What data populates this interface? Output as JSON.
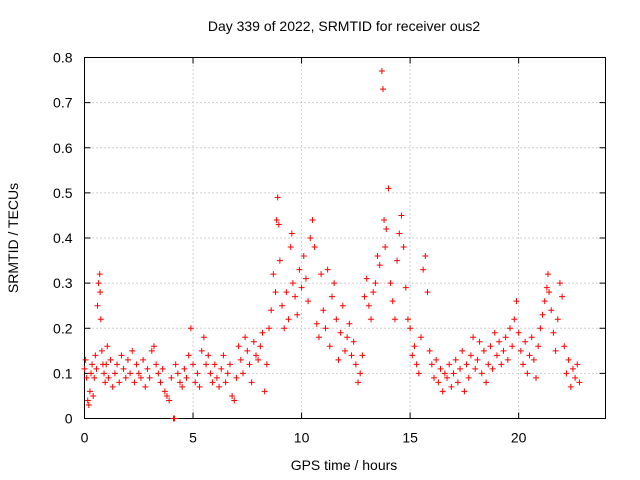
{
  "chart_data": {
    "type": "scatter",
    "title": "Day 339 of 2022, SRMTID for receiver ous2",
    "xlabel": "GPS time / hours",
    "ylabel": "SRMTID / TECUs",
    "xlim": [
      0,
      24
    ],
    "ylim": [
      0,
      0.8
    ],
    "x_ticks": [
      0,
      5,
      10,
      15,
      20
    ],
    "y_ticks": [
      0,
      0.1,
      0.2,
      0.3,
      0.4,
      0.5,
      0.6,
      0.7,
      0.8
    ],
    "x_tick_labels": [
      "0",
      "5",
      "10",
      "15",
      "20"
    ],
    "y_tick_labels": [
      "0",
      "0.1",
      "0.2",
      "0.3",
      "0.4",
      "0.5",
      "0.6",
      "0.7",
      "0.8"
    ],
    "grid": true,
    "legend": "none",
    "marker": "+",
    "series": [
      {
        "name": "SRMTID",
        "color": "#ff0000",
        "points": [
          [
            0.0,
            0.11
          ],
          [
            0.05,
            0.13
          ],
          [
            0.1,
            0.09
          ],
          [
            0.15,
            0.04
          ],
          [
            0.2,
            0.03
          ],
          [
            0.25,
            0.06
          ],
          [
            0.3,
            0.1
          ],
          [
            0.35,
            0.12
          ],
          [
            0.4,
            0.05
          ],
          [
            0.45,
            0.09
          ],
          [
            0.5,
            0.14
          ],
          [
            0.55,
            0.11
          ],
          [
            0.6,
            0.25
          ],
          [
            0.65,
            0.3
          ],
          [
            0.7,
            0.32
          ],
          [
            0.72,
            0.28
          ],
          [
            0.75,
            0.22
          ],
          [
            0.8,
            0.15
          ],
          [
            0.85,
            0.12
          ],
          [
            0.9,
            0.1
          ],
          [
            0.95,
            0.08
          ],
          [
            1.0,
            0.12
          ],
          [
            1.05,
            0.16
          ],
          [
            1.1,
            0.09
          ],
          [
            1.2,
            0.13
          ],
          [
            1.3,
            0.07
          ],
          [
            1.4,
            0.1
          ],
          [
            1.5,
            0.12
          ],
          [
            1.6,
            0.08
          ],
          [
            1.7,
            0.14
          ],
          [
            1.8,
            0.11
          ],
          [
            1.9,
            0.09
          ],
          [
            2.0,
            0.13
          ],
          [
            2.1,
            0.1
          ],
          [
            2.2,
            0.15
          ],
          [
            2.3,
            0.08
          ],
          [
            2.4,
            0.12
          ],
          [
            2.5,
            0.1
          ],
          [
            2.6,
            0.09
          ],
          [
            2.7,
            0.13
          ],
          [
            2.8,
            0.07
          ],
          [
            2.9,
            0.11
          ],
          [
            3.0,
            0.09
          ],
          [
            3.1,
            0.15
          ],
          [
            3.2,
            0.16
          ],
          [
            3.3,
            0.12
          ],
          [
            3.4,
            0.1
          ],
          [
            3.5,
            0.08
          ],
          [
            3.6,
            0.11
          ],
          [
            3.7,
            0.06
          ],
          [
            3.8,
            0.05
          ],
          [
            3.9,
            0.04
          ],
          [
            4.0,
            0.09
          ],
          [
            4.1,
            0.0
          ],
          [
            4.15,
            0.0
          ],
          [
            4.2,
            0.12
          ],
          [
            4.3,
            0.1
          ],
          [
            4.4,
            0.08
          ],
          [
            4.5,
            0.07
          ],
          [
            4.6,
            0.11
          ],
          [
            4.7,
            0.09
          ],
          [
            4.8,
            0.14
          ],
          [
            4.9,
            0.2
          ],
          [
            5.0,
            0.12
          ],
          [
            5.1,
            0.08
          ],
          [
            5.2,
            0.1
          ],
          [
            5.3,
            0.07
          ],
          [
            5.4,
            0.15
          ],
          [
            5.5,
            0.18
          ],
          [
            5.6,
            0.12
          ],
          [
            5.7,
            0.14
          ],
          [
            5.8,
            0.1
          ],
          [
            5.9,
            0.08
          ],
          [
            6.0,
            0.12
          ],
          [
            6.1,
            0.09
          ],
          [
            6.2,
            0.07
          ],
          [
            6.3,
            0.11
          ],
          [
            6.4,
            0.14
          ],
          [
            6.5,
            0.08
          ],
          [
            6.6,
            0.1
          ],
          [
            6.7,
            0.12
          ],
          [
            6.8,
            0.05
          ],
          [
            6.9,
            0.04
          ],
          [
            7.0,
            0.09
          ],
          [
            7.1,
            0.16
          ],
          [
            7.2,
            0.13
          ],
          [
            7.3,
            0.1
          ],
          [
            7.4,
            0.18
          ],
          [
            7.5,
            0.15
          ],
          [
            7.6,
            0.12
          ],
          [
            7.7,
            0.08
          ],
          [
            7.8,
            0.17
          ],
          [
            7.9,
            0.14
          ],
          [
            8.0,
            0.13
          ],
          [
            8.1,
            0.16
          ],
          [
            8.2,
            0.19
          ],
          [
            8.3,
            0.06
          ],
          [
            8.4,
            0.12
          ],
          [
            8.5,
            0.2
          ],
          [
            8.6,
            0.24
          ],
          [
            8.7,
            0.32
          ],
          [
            8.8,
            0.28
          ],
          [
            8.85,
            0.44
          ],
          [
            8.9,
            0.49
          ],
          [
            8.95,
            0.43
          ],
          [
            9.0,
            0.35
          ],
          [
            9.1,
            0.25
          ],
          [
            9.2,
            0.2
          ],
          [
            9.3,
            0.28
          ],
          [
            9.4,
            0.22
          ],
          [
            9.5,
            0.38
          ],
          [
            9.55,
            0.41
          ],
          [
            9.6,
            0.3
          ],
          [
            9.7,
            0.27
          ],
          [
            9.8,
            0.23
          ],
          [
            9.9,
            0.33
          ],
          [
            10.0,
            0.29
          ],
          [
            10.1,
            0.36
          ],
          [
            10.2,
            0.31
          ],
          [
            10.3,
            0.26
          ],
          [
            10.4,
            0.4
          ],
          [
            10.5,
            0.44
          ],
          [
            10.6,
            0.38
          ],
          [
            10.7,
            0.21
          ],
          [
            10.8,
            0.18
          ],
          [
            10.9,
            0.32
          ],
          [
            11.0,
            0.24
          ],
          [
            11.1,
            0.2
          ],
          [
            11.2,
            0.33
          ],
          [
            11.3,
            0.16
          ],
          [
            11.4,
            0.27
          ],
          [
            11.5,
            0.3
          ],
          [
            11.6,
            0.22
          ],
          [
            11.7,
            0.13
          ],
          [
            11.8,
            0.19
          ],
          [
            11.9,
            0.25
          ],
          [
            12.0,
            0.15
          ],
          [
            12.1,
            0.18
          ],
          [
            12.2,
            0.21
          ],
          [
            12.3,
            0.14
          ],
          [
            12.4,
            0.17
          ],
          [
            12.5,
            0.12
          ],
          [
            12.6,
            0.08
          ],
          [
            12.7,
            0.1
          ],
          [
            12.8,
            0.14
          ],
          [
            12.9,
            0.27
          ],
          [
            13.0,
            0.31
          ],
          [
            13.1,
            0.25
          ],
          [
            13.2,
            0.22
          ],
          [
            13.3,
            0.28
          ],
          [
            13.4,
            0.3
          ],
          [
            13.5,
            0.36
          ],
          [
            13.6,
            0.34
          ],
          [
            13.7,
            0.77
          ],
          [
            13.75,
            0.73
          ],
          [
            13.8,
            0.44
          ],
          [
            13.85,
            0.38
          ],
          [
            13.9,
            0.42
          ],
          [
            14.0,
            0.51
          ],
          [
            14.1,
            0.3
          ],
          [
            14.2,
            0.26
          ],
          [
            14.3,
            0.22
          ],
          [
            14.4,
            0.35
          ],
          [
            14.5,
            0.41
          ],
          [
            14.6,
            0.45
          ],
          [
            14.7,
            0.38
          ],
          [
            14.8,
            0.29
          ],
          [
            14.9,
            0.22
          ],
          [
            15.0,
            0.2
          ],
          [
            15.1,
            0.14
          ],
          [
            15.2,
            0.16
          ],
          [
            15.3,
            0.12
          ],
          [
            15.4,
            0.1
          ],
          [
            15.5,
            0.18
          ],
          [
            15.6,
            0.33
          ],
          [
            15.7,
            0.36
          ],
          [
            15.8,
            0.28
          ],
          [
            15.9,
            0.15
          ],
          [
            16.0,
            0.12
          ],
          [
            16.1,
            0.09
          ],
          [
            16.2,
            0.13
          ],
          [
            16.3,
            0.08
          ],
          [
            16.4,
            0.11
          ],
          [
            16.5,
            0.06
          ],
          [
            16.6,
            0.1
          ],
          [
            16.7,
            0.09
          ],
          [
            16.8,
            0.12
          ],
          [
            16.9,
            0.07
          ],
          [
            17.0,
            0.1
          ],
          [
            17.1,
            0.13
          ],
          [
            17.2,
            0.08
          ],
          [
            17.3,
            0.11
          ],
          [
            17.4,
            0.15
          ],
          [
            17.5,
            0.06
          ],
          [
            17.6,
            0.12
          ],
          [
            17.7,
            0.09
          ],
          [
            17.8,
            0.14
          ],
          [
            17.9,
            0.18
          ],
          [
            18.0,
            0.11
          ],
          [
            18.1,
            0.13
          ],
          [
            18.2,
            0.17
          ],
          [
            18.3,
            0.1
          ],
          [
            18.4,
            0.15
          ],
          [
            18.5,
            0.08
          ],
          [
            18.6,
            0.12
          ],
          [
            18.7,
            0.16
          ],
          [
            18.8,
            0.11
          ],
          [
            18.9,
            0.19
          ],
          [
            19.0,
            0.14
          ],
          [
            19.1,
            0.17
          ],
          [
            19.2,
            0.12
          ],
          [
            19.3,
            0.15
          ],
          [
            19.4,
            0.18
          ],
          [
            19.5,
            0.13
          ],
          [
            19.6,
            0.2
          ],
          [
            19.7,
            0.16
          ],
          [
            19.8,
            0.22
          ],
          [
            19.9,
            0.26
          ],
          [
            20.0,
            0.19
          ],
          [
            20.1,
            0.15
          ],
          [
            20.2,
            0.12
          ],
          [
            20.3,
            0.17
          ],
          [
            20.4,
            0.1
          ],
          [
            20.5,
            0.14
          ],
          [
            20.6,
            0.18
          ],
          [
            20.7,
            0.13
          ],
          [
            20.8,
            0.09
          ],
          [
            20.9,
            0.16
          ],
          [
            21.0,
            0.2
          ],
          [
            21.1,
            0.23
          ],
          [
            21.2,
            0.26
          ],
          [
            21.3,
            0.29
          ],
          [
            21.35,
            0.32
          ],
          [
            21.4,
            0.28
          ],
          [
            21.5,
            0.24
          ],
          [
            21.6,
            0.19
          ],
          [
            21.7,
            0.15
          ],
          [
            21.8,
            0.22
          ],
          [
            21.9,
            0.3
          ],
          [
            22.0,
            0.27
          ],
          [
            22.1,
            0.16
          ],
          [
            22.2,
            0.1
          ],
          [
            22.3,
            0.13
          ],
          [
            22.4,
            0.07
          ],
          [
            22.5,
            0.11
          ],
          [
            22.6,
            0.09
          ],
          [
            22.7,
            0.12
          ],
          [
            22.8,
            0.08
          ]
        ]
      }
    ]
  }
}
